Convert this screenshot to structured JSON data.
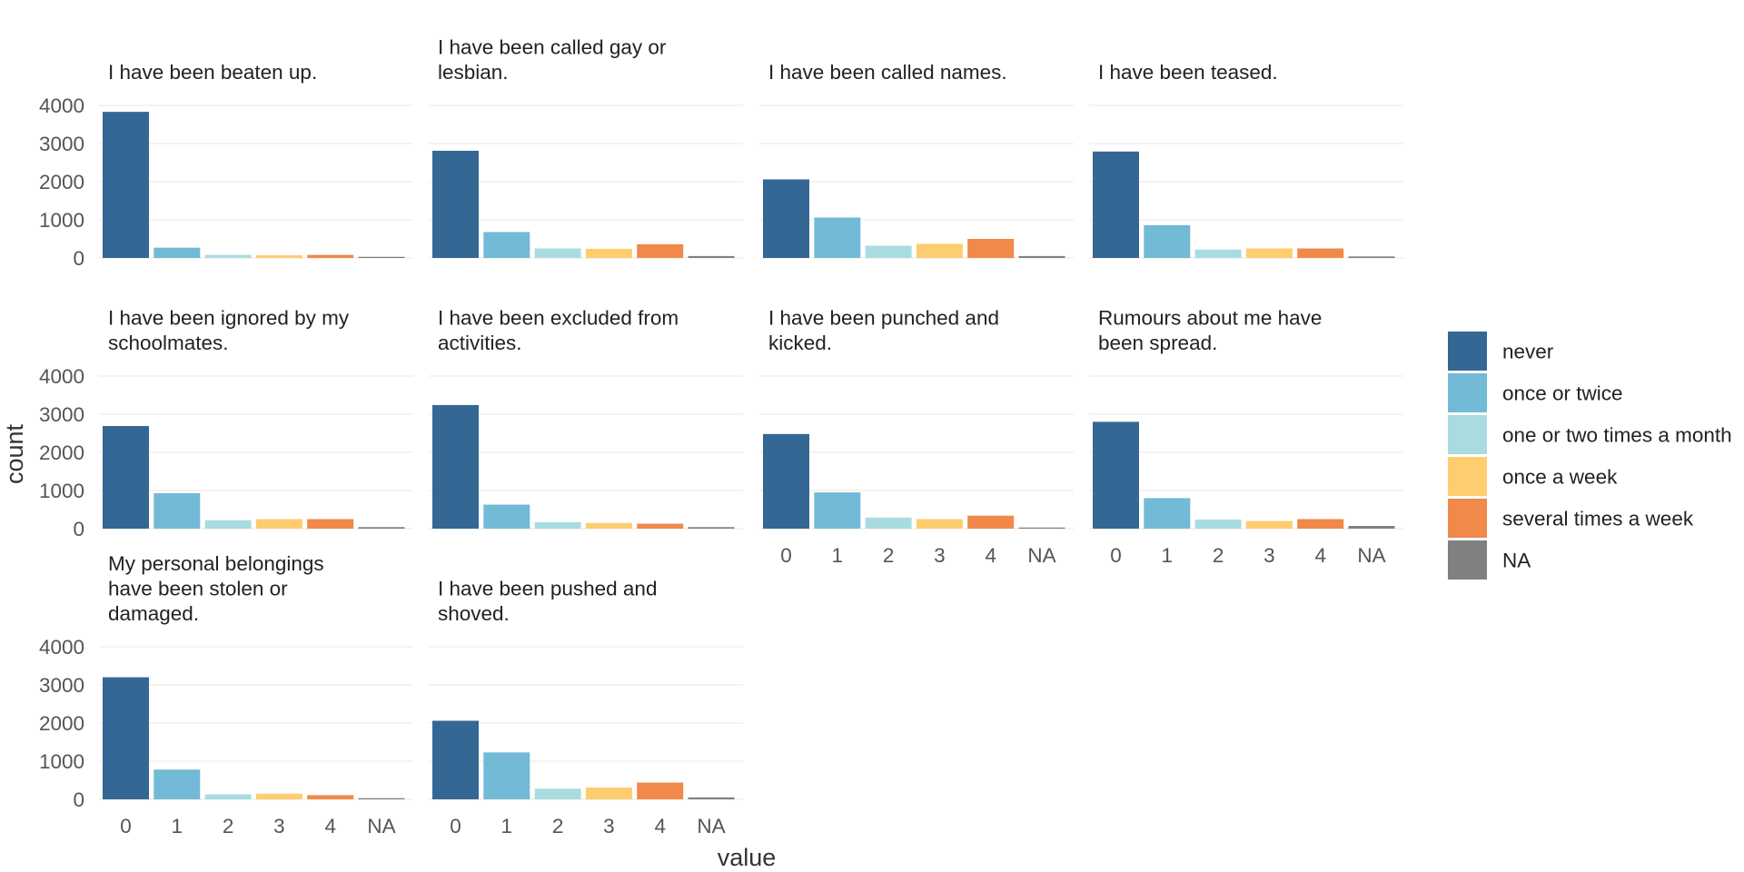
{
  "chart_data": {
    "type": "bar",
    "facets": [
      {
        "title": "I have been beaten up.",
        "values": [
          3830,
          270,
          80,
          70,
          80,
          30
        ]
      },
      {
        "title": "I have been called gay or lesbian.",
        "values": [
          2810,
          680,
          250,
          240,
          360,
          50
        ]
      },
      {
        "title": "I have been called names.",
        "values": [
          2060,
          1060,
          320,
          370,
          500,
          50
        ]
      },
      {
        "title": "I have been teased.",
        "values": [
          2790,
          860,
          220,
          250,
          250,
          40
        ]
      },
      {
        "title": "I have been ignored by my schoolmates.",
        "values": [
          2690,
          930,
          220,
          250,
          250,
          40
        ]
      },
      {
        "title": "I have been excluded from activities.",
        "values": [
          3240,
          630,
          170,
          150,
          130,
          40
        ]
      },
      {
        "title": "I have been punched and kicked.",
        "values": [
          2480,
          950,
          290,
          250,
          340,
          30
        ]
      },
      {
        "title": "Rumours about me have been spread.",
        "values": [
          2800,
          800,
          240,
          200,
          250,
          70
        ]
      },
      {
        "title": "My personal belongings have been stolen or damaged.",
        "values": [
          3200,
          780,
          130,
          150,
          110,
          30
        ]
      },
      {
        "title": "I have been pushed and shoved.",
        "values": [
          2060,
          1230,
          280,
          310,
          440,
          50
        ]
      }
    ],
    "categories": [
      "0",
      "1",
      "2",
      "3",
      "4",
      "NA"
    ],
    "series_labels": [
      "never",
      "once or twice",
      "one or two times a month",
      "once a week",
      "several times a week",
      "NA"
    ],
    "colors": [
      "#356794",
      "#72bad6",
      "#a9dce0",
      "#fdcd6f",
      "#f0894a",
      "#808080"
    ],
    "xlabel": "value",
    "ylabel": "count",
    "ylim": [
      0,
      4000
    ],
    "yticks": [
      0,
      1000,
      2000,
      3000,
      4000
    ],
    "legend_position": "right",
    "grid": true
  }
}
